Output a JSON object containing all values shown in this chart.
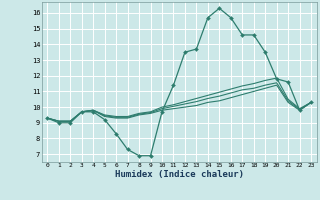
{
  "xlabel": "Humidex (Indice chaleur)",
  "bg_color": "#cce8e8",
  "line_color": "#2e7d6e",
  "grid_color": "#ffffff",
  "xlim": [
    -0.5,
    23.5
  ],
  "ylim": [
    6.5,
    16.7
  ],
  "xticks": [
    0,
    1,
    2,
    3,
    4,
    5,
    6,
    7,
    8,
    9,
    10,
    11,
    12,
    13,
    14,
    15,
    16,
    17,
    18,
    19,
    20,
    21,
    22,
    23
  ],
  "yticks": [
    7,
    8,
    9,
    10,
    11,
    12,
    13,
    14,
    15,
    16
  ],
  "line1_x": [
    0,
    1,
    2,
    3,
    4,
    5,
    6,
    7,
    8,
    9,
    10,
    11,
    12,
    13,
    14,
    15,
    16,
    17,
    18,
    19,
    20,
    21,
    22,
    23
  ],
  "line1_y": [
    9.3,
    9.0,
    9.0,
    9.7,
    9.7,
    9.2,
    8.3,
    7.3,
    6.9,
    6.9,
    9.7,
    11.4,
    13.5,
    13.7,
    15.7,
    16.3,
    15.7,
    14.6,
    14.6,
    13.5,
    11.8,
    11.6,
    9.8,
    10.3
  ],
  "line2_x": [
    0,
    1,
    2,
    3,
    4,
    5,
    6,
    7,
    8,
    9,
    10,
    11,
    12,
    13,
    14,
    15,
    16,
    17,
    18,
    19,
    20,
    21,
    22,
    23
  ],
  "line2_y": [
    9.3,
    9.1,
    9.1,
    9.7,
    9.8,
    9.4,
    9.3,
    9.3,
    9.5,
    9.6,
    9.8,
    9.9,
    10.0,
    10.1,
    10.3,
    10.4,
    10.6,
    10.8,
    11.0,
    11.2,
    11.4,
    10.3,
    9.8,
    10.3
  ],
  "line3_x": [
    0,
    1,
    2,
    3,
    4,
    5,
    6,
    7,
    8,
    9,
    10,
    11,
    12,
    13,
    14,
    15,
    16,
    17,
    18,
    19,
    20,
    21,
    22,
    23
  ],
  "line3_y": [
    9.3,
    9.1,
    9.1,
    9.7,
    9.8,
    9.45,
    9.35,
    9.35,
    9.55,
    9.65,
    9.9,
    10.05,
    10.2,
    10.35,
    10.55,
    10.7,
    10.9,
    11.1,
    11.2,
    11.4,
    11.55,
    10.4,
    9.85,
    10.3
  ],
  "line4_x": [
    0,
    1,
    2,
    3,
    4,
    5,
    6,
    7,
    8,
    9,
    10,
    11,
    12,
    13,
    14,
    15,
    16,
    17,
    18,
    19,
    20,
    21,
    22,
    23
  ],
  "line4_y": [
    9.3,
    9.1,
    9.1,
    9.7,
    9.8,
    9.5,
    9.4,
    9.4,
    9.6,
    9.7,
    10.0,
    10.15,
    10.35,
    10.55,
    10.75,
    10.95,
    11.15,
    11.35,
    11.5,
    11.7,
    11.85,
    10.5,
    9.9,
    10.3
  ]
}
